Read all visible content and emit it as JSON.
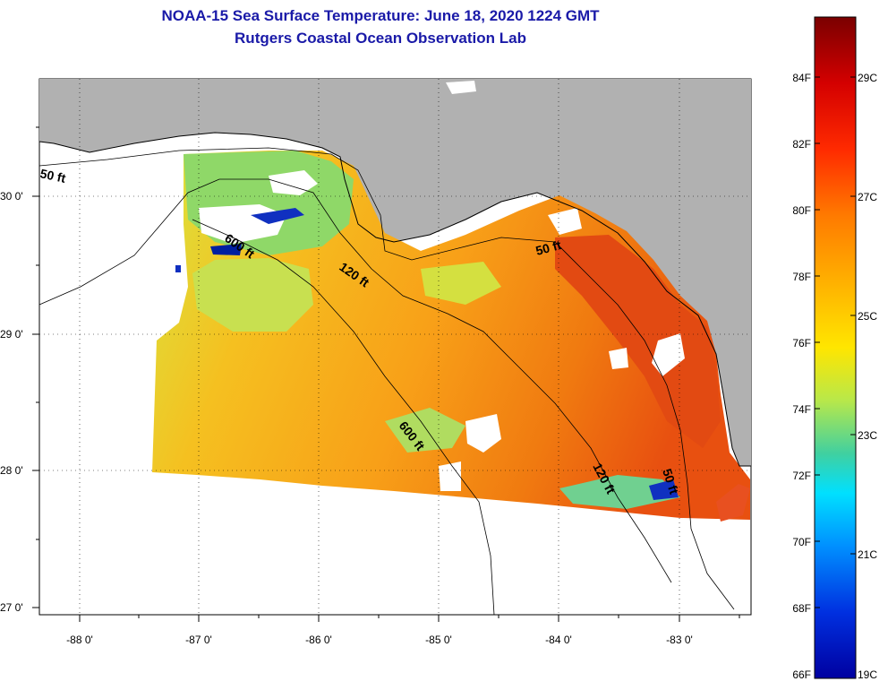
{
  "title": {
    "line1": "NOAA-15 Sea Surface Temperature:  June 18, 2020 1224 GMT",
    "line2": "Rutgers Coastal Ocean Observation Lab"
  },
  "map": {
    "latitude_labels": [
      "30 0'",
      "29 0'",
      "28 0'",
      "27 0'"
    ],
    "longitude_labels": [
      "-88 0'",
      "-87 0'",
      "-86 0'",
      "-85 0'",
      "-84 0'",
      "-83 0'"
    ],
    "depth_contour_labels": [
      "50 ft",
      "600 ft",
      "120 ft",
      "50 ft",
      "600 ft",
      "120 ft",
      "50 ft"
    ]
  },
  "colorbar": {
    "fahrenheit": [
      "84F",
      "82F",
      "80F",
      "78F",
      "76F",
      "74F",
      "72F",
      "70F",
      "68F",
      "66F"
    ],
    "celsius": [
      "29C",
      "27C",
      "25C",
      "23C",
      "21C",
      "19C"
    ],
    "colors": [
      "#7a0000",
      "#d40000",
      "#ff2a00",
      "#ff7a00",
      "#ffb000",
      "#ffe600",
      "#b8e84a",
      "#40d0a0",
      "#00e0ff",
      "#0090ff",
      "#0030e0",
      "#0000a0"
    ]
  }
}
